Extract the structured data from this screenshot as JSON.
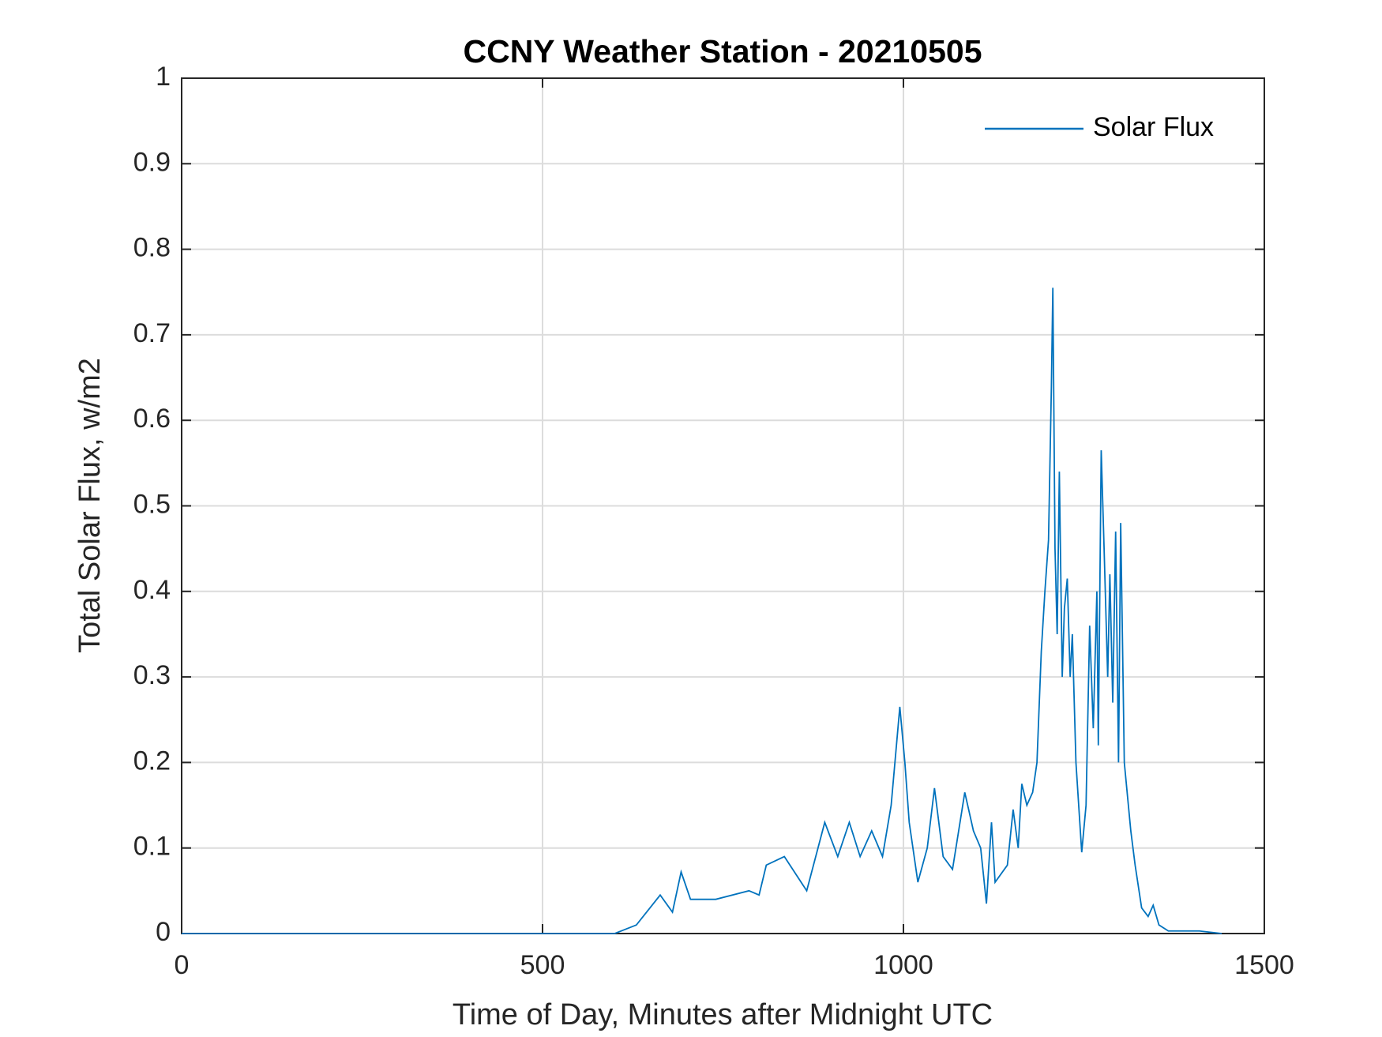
{
  "chart_data": {
    "type": "line",
    "title": "CCNY Weather Station - 20210505",
    "x_label": "Time of Day, Minutes after Midnight UTC",
    "y_label": "Total Solar Flux, w/m2",
    "x": [
      0,
      600,
      630,
      663,
      680,
      692,
      705,
      740,
      786,
      800,
      810,
      835,
      866,
      891,
      909,
      925,
      940,
      956,
      971,
      983,
      995,
      1002,
      1008,
      1020,
      1033,
      1043,
      1055,
      1068,
      1085,
      1097,
      1107,
      1115,
      1122,
      1127,
      1144,
      1152,
      1159,
      1164,
      1171,
      1179,
      1185,
      1191,
      1196,
      1201,
      1205,
      1207,
      1210,
      1213,
      1216,
      1220,
      1223,
      1227,
      1231,
      1234,
      1239,
      1247,
      1253,
      1258,
      1263,
      1268,
      1270,
      1274,
      1278,
      1283,
      1286,
      1290,
      1294,
      1298,
      1301,
      1306,
      1315,
      1321,
      1330,
      1339,
      1346,
      1354,
      1367,
      1410,
      1441
    ],
    "series": [
      {
        "name": "Solar Flux",
        "color": "#0072bd",
        "values": [
          0,
          0,
          0.01,
          0.045,
          0.025,
          0.072,
          0.04,
          0.04,
          0.05,
          0.045,
          0.08,
          0.09,
          0.05,
          0.13,
          0.09,
          0.13,
          0.09,
          0.12,
          0.09,
          0.15,
          0.265,
          0.2,
          0.13,
          0.06,
          0.1,
          0.17,
          0.09,
          0.075,
          0.165,
          0.12,
          0.1,
          0.035,
          0.13,
          0.06,
          0.08,
          0.145,
          0.1,
          0.175,
          0.15,
          0.165,
          0.2,
          0.33,
          0.4,
          0.46,
          0.64,
          0.755,
          0.45,
          0.35,
          0.54,
          0.3,
          0.38,
          0.415,
          0.3,
          0.35,
          0.2,
          0.095,
          0.15,
          0.36,
          0.24,
          0.4,
          0.22,
          0.565,
          0.45,
          0.3,
          0.42,
          0.27,
          0.47,
          0.2,
          0.48,
          0.2,
          0.12,
          0.08,
          0.03,
          0.02,
          0.033,
          0.01,
          0.003,
          0.003,
          0
        ]
      }
    ],
    "xlim": [
      0,
      1500
    ],
    "xticks": [
      0,
      500,
      1000,
      1500
    ],
    "ylim": [
      0,
      1
    ],
    "yticks": [
      0,
      0.1,
      0.2,
      0.3,
      0.4,
      0.5,
      0.6,
      0.7,
      0.8,
      0.9,
      1
    ],
    "grid": true,
    "legend": "upper right"
  }
}
